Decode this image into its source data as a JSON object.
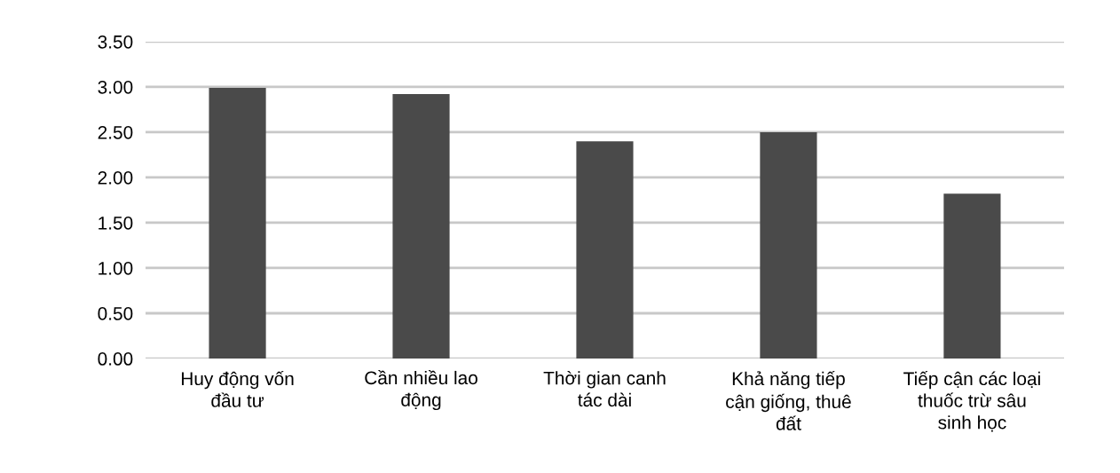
{
  "chart_data": {
    "type": "bar",
    "categories": [
      "Huy động vốn\nđầu tư",
      "Cần nhiều lao\nđộng",
      "Thời gian canh\ntác dài",
      "Khả năng tiếp\ncận giống, thuê\nđất",
      "Tiếp cận các loại\nthuốc trừ sâu\nsinh học"
    ],
    "values": [
      2.99,
      2.92,
      2.4,
      2.5,
      1.82
    ],
    "color": "#4a4a4a",
    "ylim": [
      0,
      3.5
    ],
    "yticks": [
      {
        "value": 0,
        "label": "0.00"
      },
      {
        "value": 0.5,
        "label": "0.50"
      },
      {
        "value": 1,
        "label": "1.00"
      },
      {
        "value": 1.5,
        "label": "1.50"
      },
      {
        "value": 2,
        "label": "2.00"
      },
      {
        "value": 2.5,
        "label": "2.50"
      },
      {
        "value": 3,
        "label": "3.00"
      },
      {
        "value": 3.5,
        "label": "3.50"
      }
    ],
    "grid": "y"
  }
}
